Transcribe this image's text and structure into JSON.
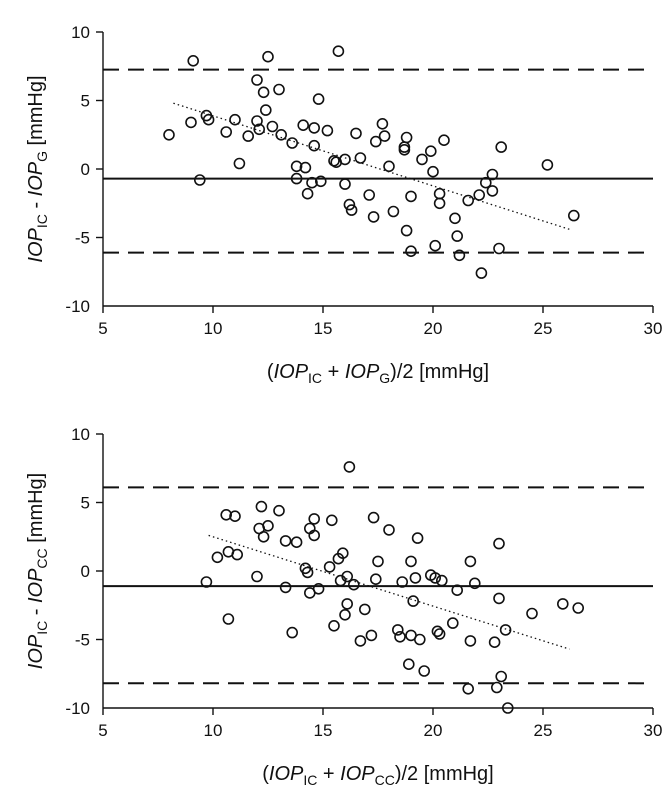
{
  "chart_data": [
    {
      "type": "scatter",
      "title": "",
      "xlim": [
        5,
        30
      ],
      "ylim": [
        -10,
        10
      ],
      "xticks": [
        5,
        10,
        15,
        20,
        25,
        30
      ],
      "yticks": [
        -10,
        -5,
        0,
        5,
        10
      ],
      "grid": false,
      "legend": "none",
      "xlabel": {
        "pre": "(",
        "ic": "IOP",
        "ic_sub": "IC",
        "mid": " + ",
        "ref": "IOP",
        "ref_sub": "G",
        "post": ")/2 [mmHg]"
      },
      "ylabel": {
        "ic": "IOP",
        "ic_sub": "IC",
        "mid": " - ",
        "ref": "IOP",
        "ref_sub": "G",
        "post": " [mmHg]"
      },
      "mean_line": 0.7,
      "limits_of_agreement": [
        7.4,
        -6.1
      ],
      "trend_line": {
        "x": [
          8.2,
          26.2
        ],
        "y": [
          4.8,
          -4.4
        ]
      },
      "points": [
        [
          8.0,
          2.5
        ],
        [
          9.0,
          3.4
        ],
        [
          9.1,
          7.9
        ],
        [
          9.4,
          -0.8
        ],
        [
          9.7,
          3.9
        ],
        [
          9.8,
          3.6
        ],
        [
          10.6,
          2.7
        ],
        [
          11.0,
          3.6
        ],
        [
          11.2,
          0.4
        ],
        [
          11.6,
          2.4
        ],
        [
          12.0,
          3.5
        ],
        [
          12.0,
          6.5
        ],
        [
          12.1,
          2.9
        ],
        [
          12.3,
          5.6
        ],
        [
          12.4,
          4.3
        ],
        [
          12.5,
          8.2
        ],
        [
          12.7,
          3.1
        ],
        [
          13.0,
          5.8
        ],
        [
          13.1,
          2.5
        ],
        [
          13.6,
          1.9
        ],
        [
          13.8,
          -0.7
        ],
        [
          13.8,
          0.2
        ],
        [
          14.1,
          3.2
        ],
        [
          14.2,
          0.1
        ],
        [
          14.3,
          -1.8
        ],
        [
          14.5,
          -1.0
        ],
        [
          14.6,
          1.7
        ],
        [
          14.6,
          3.0
        ],
        [
          14.8,
          5.1
        ],
        [
          14.9,
          -0.9
        ],
        [
          15.2,
          2.8
        ],
        [
          15.5,
          0.6
        ],
        [
          15.6,
          0.5
        ],
        [
          15.7,
          8.6
        ],
        [
          16.0,
          0.7
        ],
        [
          16.0,
          -1.1
        ],
        [
          16.2,
          -2.6
        ],
        [
          16.3,
          -3.0
        ],
        [
          16.5,
          2.6
        ],
        [
          16.7,
          0.8
        ],
        [
          17.1,
          -1.9
        ],
        [
          17.3,
          -3.5
        ],
        [
          17.4,
          2.0
        ],
        [
          17.7,
          3.3
        ],
        [
          17.8,
          2.4
        ],
        [
          18.0,
          0.2
        ],
        [
          18.2,
          -3.1
        ],
        [
          18.7,
          1.6
        ],
        [
          18.7,
          1.4
        ],
        [
          18.8,
          2.3
        ],
        [
          18.8,
          -4.5
        ],
        [
          19.0,
          -2.0
        ],
        [
          19.0,
          -6.0
        ],
        [
          19.5,
          0.7
        ],
        [
          19.9,
          1.3
        ],
        [
          20.0,
          -0.2
        ],
        [
          20.1,
          -5.6
        ],
        [
          20.3,
          -2.5
        ],
        [
          20.3,
          -1.8
        ],
        [
          20.5,
          2.1
        ],
        [
          21.0,
          -3.6
        ],
        [
          21.1,
          -4.9
        ],
        [
          21.2,
          -6.3
        ],
        [
          21.6,
          -2.3
        ],
        [
          22.1,
          -1.9
        ],
        [
          22.2,
          -7.6
        ],
        [
          22.4,
          -1.0
        ],
        [
          22.7,
          -0.4
        ],
        [
          22.7,
          -1.6
        ],
        [
          23.0,
          -5.8
        ],
        [
          23.1,
          1.6
        ],
        [
          25.2,
          0.3
        ],
        [
          26.4,
          -3.4
        ]
      ]
    },
    {
      "type": "scatter",
      "title": "",
      "xlim": [
        5,
        30
      ],
      "ylim": [
        -10,
        10
      ],
      "xticks": [
        5,
        10,
        15,
        20,
        25,
        30
      ],
      "yticks": [
        -10,
        -5,
        0,
        5,
        10
      ],
      "grid": false,
      "legend": "none",
      "xlabel": {
        "pre": "(",
        "ic": "IOP",
        "ic_sub": "IC",
        "mid": " + ",
        "ref": "IOP",
        "ref_sub": "CC",
        "post": ")/2 [mmHg]"
      },
      "ylabel": {
        "ic": "IOP",
        "ic_sub": "IC",
        "mid": " - ",
        "ref": "IOP",
        "ref_sub": "CC",
        "post": " [mmHg]"
      },
      "mean_line": -1.1,
      "limits_of_agreement": [
        6.1,
        -8.2
      ],
      "trend_line": {
        "x": [
          9.6,
          26.0
        ],
        "y": [
          2.6,
          -5.7
        ]
      },
      "points": [
        [
          9.7,
          -0.8
        ],
        [
          10.2,
          1.0
        ],
        [
          10.6,
          4.1
        ],
        [
          10.7,
          1.4
        ],
        [
          10.7,
          -3.5
        ],
        [
          11.0,
          4.0
        ],
        [
          11.1,
          1.2
        ],
        [
          12.0,
          -0.4
        ],
        [
          12.1,
          3.1
        ],
        [
          12.2,
          4.7
        ],
        [
          12.3,
          2.5
        ],
        [
          12.5,
          3.3
        ],
        [
          13.0,
          4.4
        ],
        [
          13.3,
          2.2
        ],
        [
          13.3,
          -1.2
        ],
        [
          13.6,
          -4.5
        ],
        [
          13.8,
          2.1
        ],
        [
          14.2,
          0.2
        ],
        [
          14.3,
          -0.1
        ],
        [
          14.4,
          -1.6
        ],
        [
          14.4,
          3.1
        ],
        [
          14.6,
          2.6
        ],
        [
          14.6,
          3.8
        ],
        [
          14.8,
          -1.3
        ],
        [
          15.3,
          0.3
        ],
        [
          15.4,
          3.7
        ],
        [
          15.5,
          -4.0
        ],
        [
          15.7,
          0.9
        ],
        [
          15.8,
          -0.7
        ],
        [
          15.9,
          1.3
        ],
        [
          16.0,
          -3.2
        ],
        [
          16.1,
          -0.4
        ],
        [
          16.1,
          -2.4
        ],
        [
          16.2,
          7.6
        ],
        [
          16.4,
          -1.0
        ],
        [
          16.7,
          -5.1
        ],
        [
          16.9,
          -2.8
        ],
        [
          17.2,
          -4.7
        ],
        [
          17.3,
          3.9
        ],
        [
          17.4,
          -0.6
        ],
        [
          17.5,
          0.7
        ],
        [
          18.0,
          3.0
        ],
        [
          18.4,
          -4.3
        ],
        [
          18.5,
          -4.8
        ],
        [
          18.6,
          -0.8
        ],
        [
          18.9,
          -6.8
        ],
        [
          19.0,
          -4.7
        ],
        [
          19.0,
          0.7
        ],
        [
          19.1,
          -2.2
        ],
        [
          19.2,
          -0.5
        ],
        [
          19.3,
          2.4
        ],
        [
          19.4,
          -5.0
        ],
        [
          19.6,
          -7.3
        ],
        [
          19.9,
          -0.3
        ],
        [
          20.1,
          -0.5
        ],
        [
          20.2,
          -4.4
        ],
        [
          20.3,
          -4.6
        ],
        [
          20.4,
          -0.7
        ],
        [
          20.9,
          -3.8
        ],
        [
          21.1,
          -1.4
        ],
        [
          21.6,
          -8.6
        ],
        [
          21.7,
          0.7
        ],
        [
          21.7,
          -5.1
        ],
        [
          21.9,
          -0.9
        ],
        [
          22.8,
          -5.2
        ],
        [
          22.9,
          -8.5
        ],
        [
          23.0,
          2.0
        ],
        [
          23.0,
          -2.0
        ],
        [
          23.1,
          -7.7
        ],
        [
          23.4,
          -10.0
        ],
        [
          23.3,
          -4.3
        ],
        [
          24.5,
          -3.1
        ],
        [
          25.9,
          -2.4
        ],
        [
          26.6,
          -2.7
        ]
      ]
    }
  ]
}
